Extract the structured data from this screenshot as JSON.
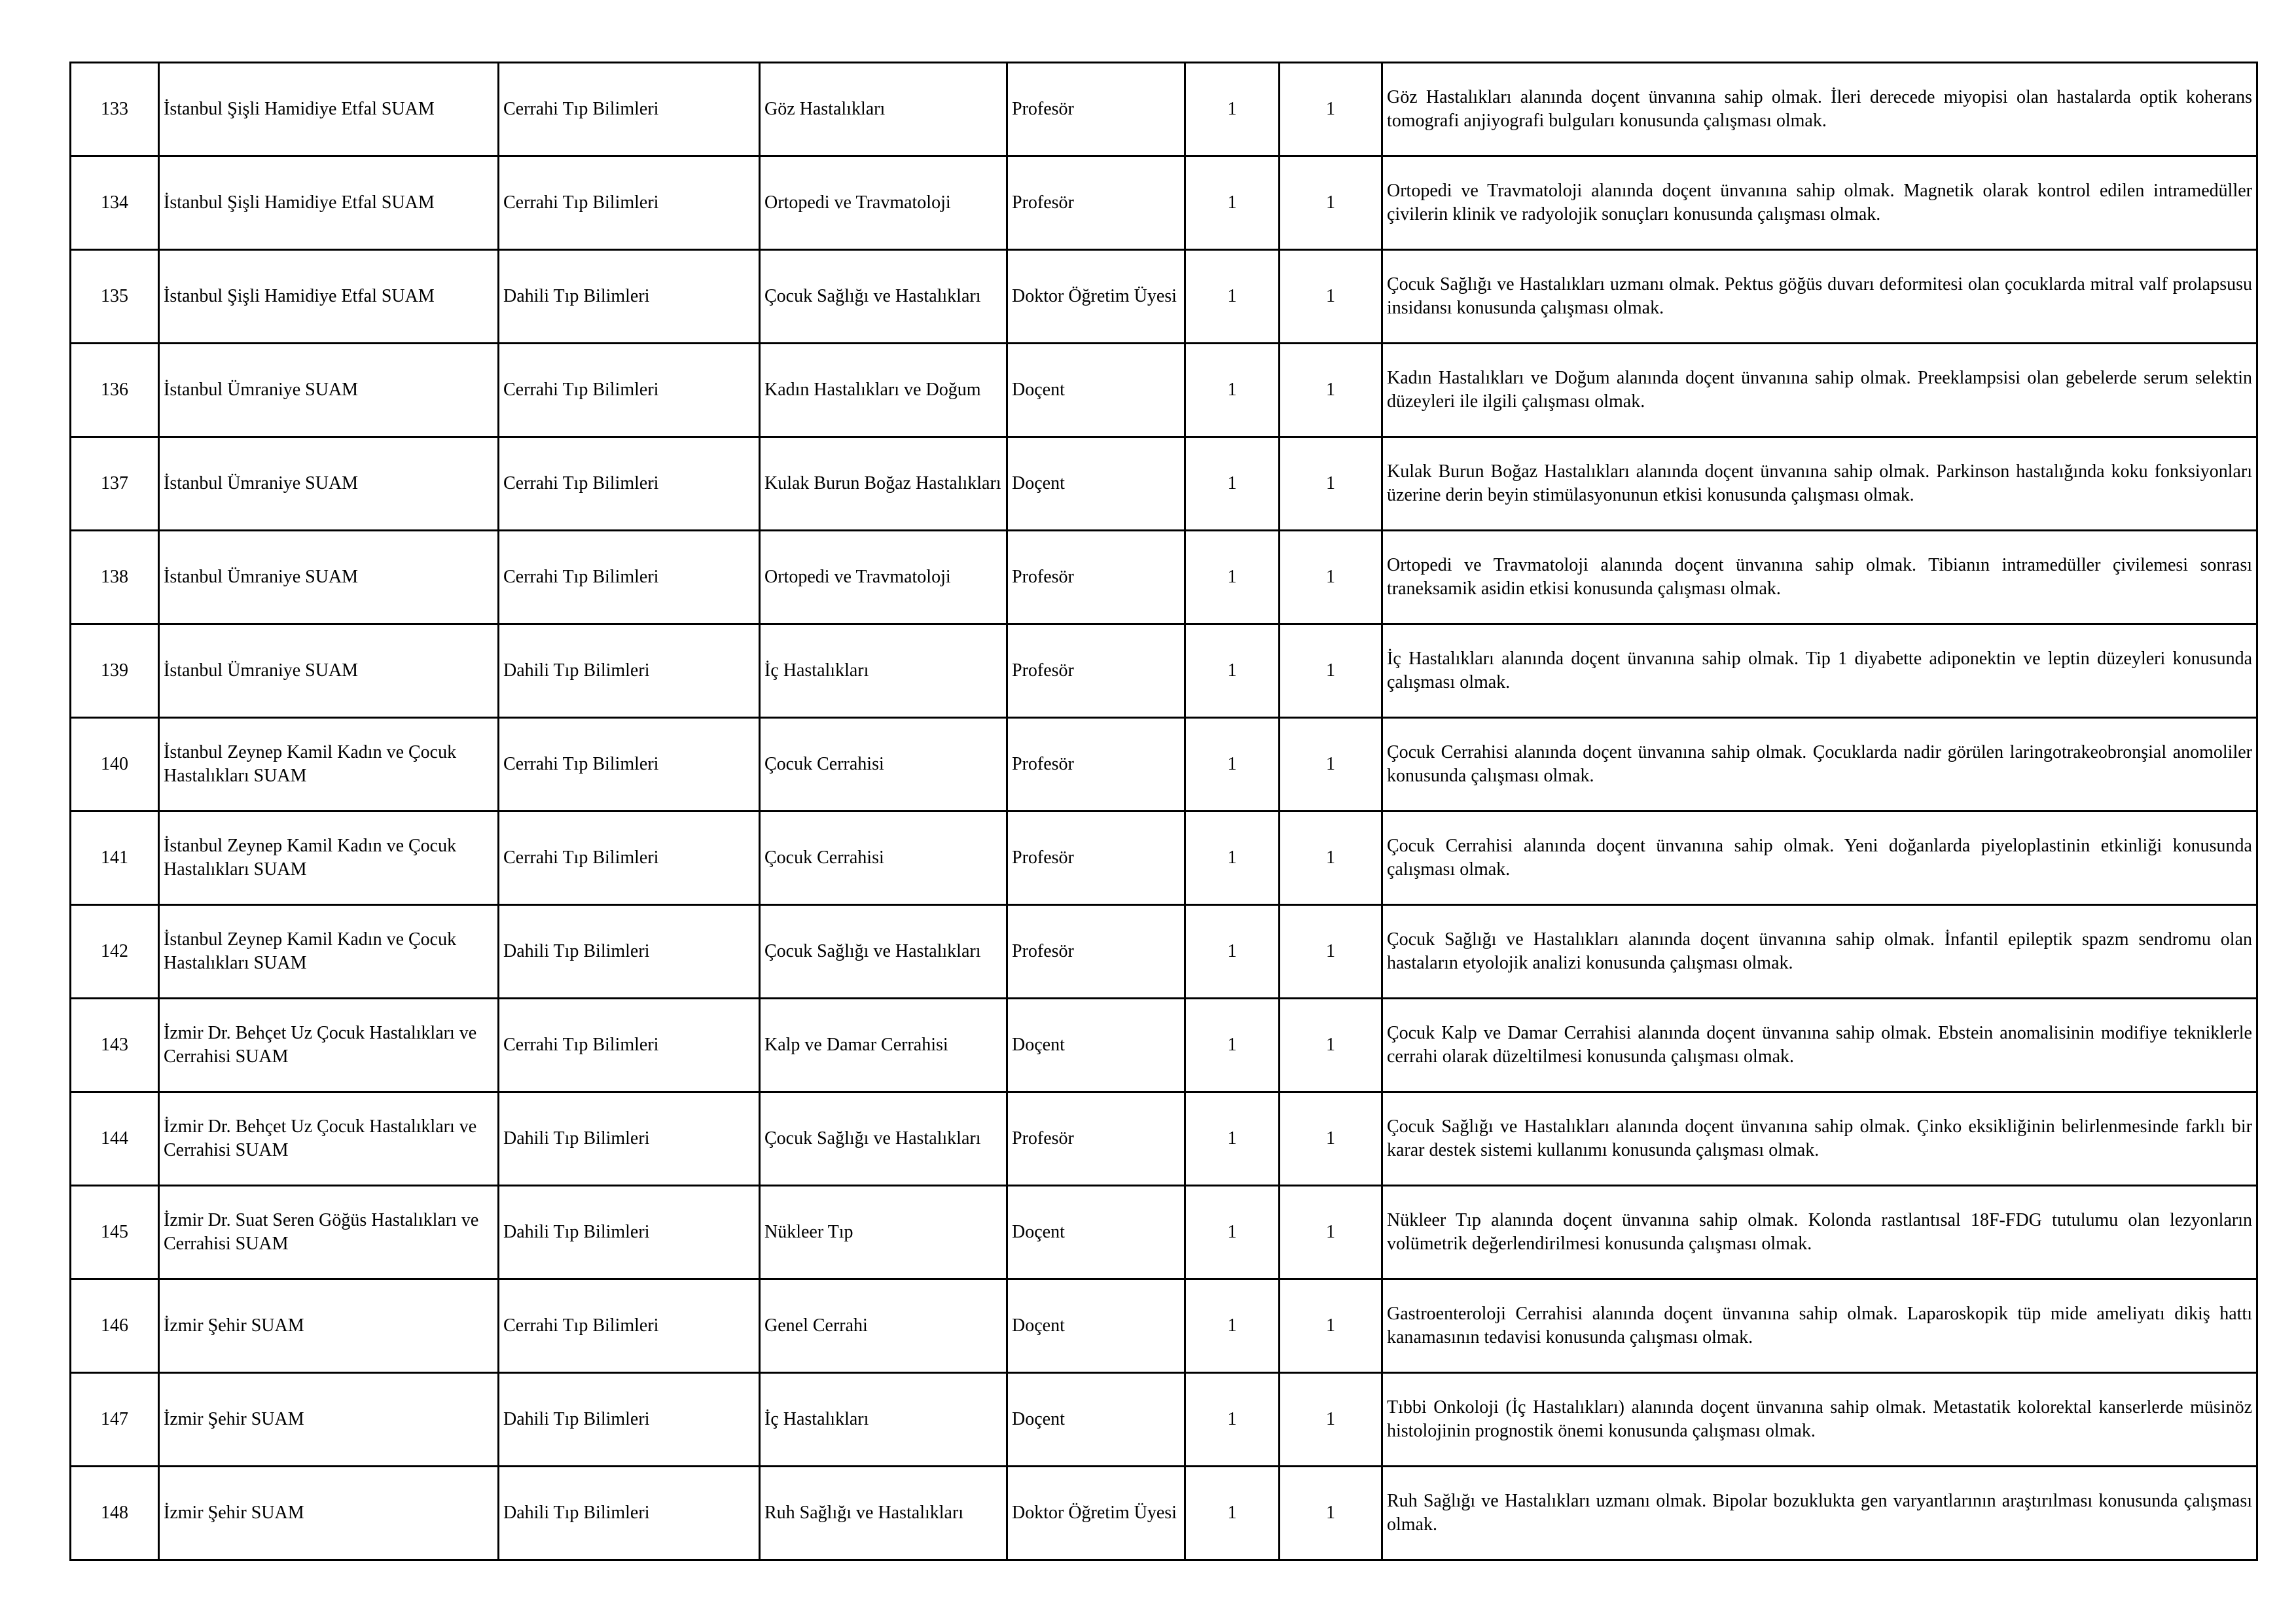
{
  "rows": [
    {
      "no": "133",
      "institution": "İstanbul Şişli Hamidiye Etfal SUAM",
      "field": "Cerrahi Tıp Bilimleri",
      "department": "Göz Hastalıkları",
      "title": "Profesör",
      "col6": "1",
      "col7": "1",
      "requirement": "Göz Hastalıkları alanında doçent ünvanına sahip olmak. İleri derecede miyopisi olan hastalarda optik koherans tomografi anjiyografi bulguları konusunda çalışması olmak."
    },
    {
      "no": "134",
      "institution": "İstanbul Şişli Hamidiye Etfal SUAM",
      "field": "Cerrahi Tıp Bilimleri",
      "department": "Ortopedi ve Travmatoloji",
      "title": "Profesör",
      "col6": "1",
      "col7": "1",
      "requirement": "Ortopedi ve Travmatoloji alanında doçent ünvanına sahip olmak. Magnetik olarak kontrol edilen intramedüller çivilerin klinik ve radyolojik sonuçları konusunda çalışması olmak."
    },
    {
      "no": "135",
      "institution": "İstanbul Şişli Hamidiye Etfal SUAM",
      "field": "Dahili Tıp Bilimleri",
      "department": "Çocuk Sağlığı ve Hastalıkları",
      "title": "Doktor Öğretim Üyesi",
      "col6": "1",
      "col7": "1",
      "requirement": "Çocuk Sağlığı ve Hastalıkları uzmanı olmak. Pektus göğüs duvarı deformitesi olan çocuklarda mitral valf prolapsusu insidansı konusunda çalışması olmak."
    },
    {
      "no": "136",
      "institution": "İstanbul Ümraniye SUAM",
      "field": "Cerrahi Tıp Bilimleri",
      "department": "Kadın Hastalıkları ve Doğum",
      "title": "Doçent",
      "col6": "1",
      "col7": "1",
      "requirement": "Kadın Hastalıkları ve Doğum alanında doçent ünvanına sahip olmak. Preeklampsisi olan gebelerde serum selektin düzeyleri ile ilgili çalışması olmak."
    },
    {
      "no": "137",
      "institution": "İstanbul Ümraniye SUAM",
      "field": "Cerrahi Tıp Bilimleri",
      "department": "Kulak Burun Boğaz Hastalıkları",
      "title": "Doçent",
      "col6": "1",
      "col7": "1",
      "requirement": "Kulak Burun Boğaz Hastalıkları alanında doçent ünvanına sahip olmak. Parkinson hastalığında koku fonksiyonları üzerine derin beyin stimülasyonunun etkisi konusunda çalışması olmak."
    },
    {
      "no": "138",
      "institution": "İstanbul Ümraniye SUAM",
      "field": "Cerrahi Tıp Bilimleri",
      "department": "Ortopedi ve Travmatoloji",
      "title": "Profesör",
      "col6": "1",
      "col7": "1",
      "requirement": "Ortopedi ve Travmatoloji alanında doçent ünvanına sahip olmak. Tibianın intramedüller çivilemesi sonrası traneksamik asidin etkisi konusunda çalışması olmak."
    },
    {
      "no": "139",
      "institution": "İstanbul Ümraniye SUAM",
      "field": "Dahili Tıp Bilimleri",
      "department": "İç Hastalıkları",
      "title": "Profesör",
      "col6": "1",
      "col7": "1",
      "requirement": "İç Hastalıkları alanında doçent ünvanına sahip olmak. Tip 1 diyabette adiponektin ve leptin düzeyleri konusunda çalışması olmak."
    },
    {
      "no": "140",
      "institution": "İstanbul Zeynep Kamil Kadın ve Çocuk Hastalıkları SUAM",
      "field": "Cerrahi Tıp Bilimleri",
      "department": "Çocuk Cerrahisi",
      "title": "Profesör",
      "col6": "1",
      "col7": "1",
      "requirement": "Çocuk Cerrahisi alanında doçent ünvanına sahip olmak. Çocuklarda nadir görülen laringotrakeobronşial anomoliler konusunda çalışması olmak."
    },
    {
      "no": "141",
      "institution": "İstanbul Zeynep Kamil Kadın ve Çocuk Hastalıkları SUAM",
      "field": "Cerrahi Tıp Bilimleri",
      "department": "Çocuk Cerrahisi",
      "title": "Profesör",
      "col6": "1",
      "col7": "1",
      "requirement": "Çocuk Cerrahisi alanında doçent ünvanına sahip olmak. Yeni doğanlarda piyeloplastinin etkinliği konusunda çalışması olmak."
    },
    {
      "no": "142",
      "institution": "İstanbul Zeynep Kamil Kadın ve Çocuk Hastalıkları SUAM",
      "field": "Dahili Tıp Bilimleri",
      "department": "Çocuk Sağlığı ve Hastalıkları",
      "title": "Profesör",
      "col6": "1",
      "col7": "1",
      "requirement": "Çocuk Sağlığı ve Hastalıkları alanında doçent ünvanına sahip olmak. İnfantil epileptik spazm sendromu olan hastaların etyolojik analizi konusunda çalışması olmak."
    },
    {
      "no": "143",
      "institution": "İzmir Dr. Behçet Uz Çocuk Hastalıkları ve Cerrahisi SUAM",
      "field": "Cerrahi Tıp Bilimleri",
      "department": "Kalp ve Damar Cerrahisi",
      "title": "Doçent",
      "col6": "1",
      "col7": "1",
      "requirement": "Çocuk Kalp ve Damar Cerrahisi alanında doçent ünvanına sahip olmak. Ebstein anomalisinin modifiye tekniklerle cerrahi olarak düzeltilmesi konusunda çalışması olmak."
    },
    {
      "no": "144",
      "institution": "İzmir Dr. Behçet Uz Çocuk Hastalıkları ve Cerrahisi SUAM",
      "field": "Dahili Tıp Bilimleri",
      "department": "Çocuk Sağlığı ve Hastalıkları",
      "title": "Profesör",
      "col6": "1",
      "col7": "1",
      "requirement": "Çocuk Sağlığı ve Hastalıkları alanında doçent ünvanına sahip olmak. Çinko eksikliğinin belirlenmesinde farklı bir karar destek sistemi kullanımı konusunda çalışması olmak."
    },
    {
      "no": "145",
      "institution": "İzmir Dr. Suat Seren Göğüs Hastalıkları ve Cerrahisi SUAM",
      "field": "Dahili Tıp Bilimleri",
      "department": "Nükleer Tıp",
      "title": "Doçent",
      "col6": "1",
      "col7": "1",
      "requirement": "Nükleer Tıp alanında doçent ünvanına sahip olmak. Kolonda rastlantısal 18F-FDG tutulumu olan lezyonların volümetrik değerlendirilmesi konusunda çalışması olmak."
    },
    {
      "no": "146",
      "institution": "İzmir Şehir SUAM",
      "field": "Cerrahi Tıp Bilimleri",
      "department": "Genel Cerrahi",
      "title": "Doçent",
      "col6": "1",
      "col7": "1",
      "requirement": "Gastroenteroloji Cerrahisi alanında doçent ünvanına sahip olmak. Laparoskopik tüp mide ameliyatı dikiş hattı kanamasının tedavisi konusunda çalışması olmak."
    },
    {
      "no": "147",
      "institution": "İzmir Şehir SUAM",
      "field": "Dahili Tıp Bilimleri",
      "department": "İç Hastalıkları",
      "title": "Doçent",
      "col6": "1",
      "col7": "1",
      "requirement": "Tıbbi Onkoloji (İç Hastalıkları) alanında doçent ünvanına sahip olmak. Metastatik kolorektal kanserlerde müsinöz histolojinin prognostik önemi konusunda çalışması olmak."
    },
    {
      "no": "148",
      "institution": "İzmir Şehir SUAM",
      "field": "Dahili Tıp Bilimleri",
      "department": "Ruh Sağlığı ve Hastalıkları",
      "title": "Doktor Öğretim Üyesi",
      "col6": "1",
      "col7": "1",
      "requirement": "Ruh Sağlığı ve Hastalıkları uzmanı olmak. Bipolar bozuklukta gen varyantlarının araştırılması konusunda çalışması olmak."
    }
  ]
}
